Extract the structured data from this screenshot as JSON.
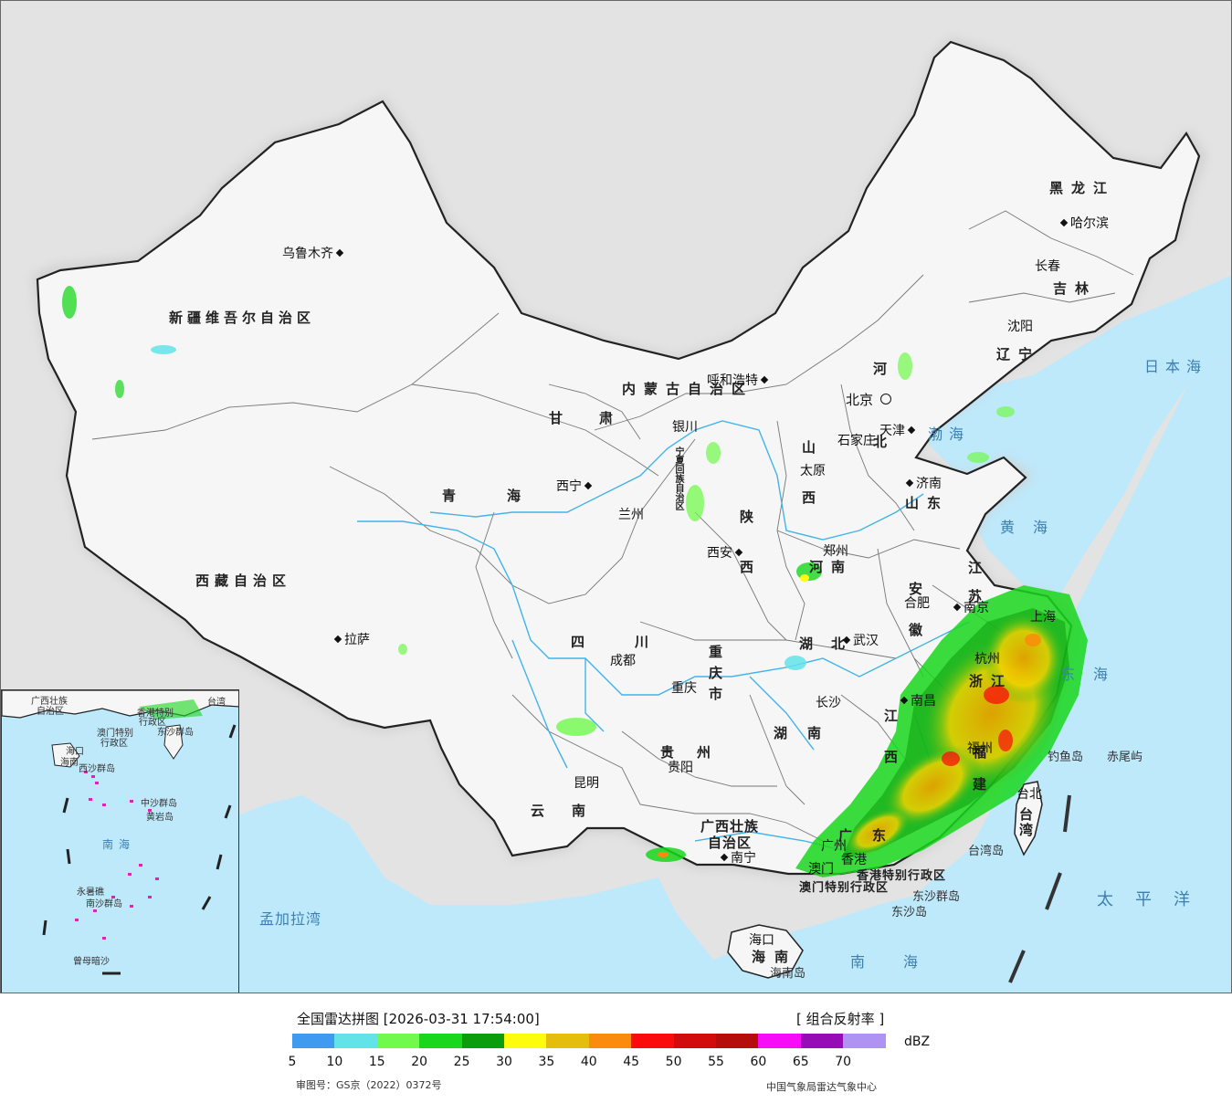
{
  "title": "全国雷达拼图 [2026-03-31 17:54:00]",
  "product": "[ 组合反射率 ]",
  "unit": "dBZ",
  "approval_number": "审图号：GS京（2022）0372号",
  "issuer": "中国气象局雷达气象中心",
  "legend": {
    "ticks": [
      "5",
      "10",
      "15",
      "20",
      "25",
      "30",
      "35",
      "40",
      "45",
      "50",
      "55",
      "60",
      "65",
      "70"
    ],
    "colors": [
      "#3e9bf0",
      "#62e3e8",
      "#71fa4c",
      "#19d71c",
      "#0c9d0c",
      "#fcfc0c",
      "#e3be0c",
      "#fa8b0c",
      "#fa0c0c",
      "#d20c0c",
      "#b50c0c",
      "#f60cf6",
      "#960cb7",
      "#ae93f2"
    ]
  },
  "capital": "北京",
  "cities": [
    {
      "name": "乌鲁木齐"
    },
    {
      "name": "呼和浩特"
    },
    {
      "name": "哈尔滨"
    },
    {
      "name": "长春"
    },
    {
      "name": "沈阳"
    },
    {
      "name": "天津"
    },
    {
      "name": "石家庄"
    },
    {
      "name": "太原"
    },
    {
      "name": "济南"
    },
    {
      "name": "银川"
    },
    {
      "name": "西宁"
    },
    {
      "name": "兰州"
    },
    {
      "name": "西安"
    },
    {
      "name": "郑州"
    },
    {
      "name": "合肥"
    },
    {
      "name": "南京"
    },
    {
      "name": "上海"
    },
    {
      "name": "杭州"
    },
    {
      "name": "武汉"
    },
    {
      "name": "成都"
    },
    {
      "name": "重庆"
    },
    {
      "name": "拉萨"
    },
    {
      "name": "长沙"
    },
    {
      "name": "南昌"
    },
    {
      "name": "福州"
    },
    {
      "name": "台北"
    },
    {
      "name": "贵阳"
    },
    {
      "name": "昆明"
    },
    {
      "name": "南宁"
    },
    {
      "name": "广州"
    },
    {
      "name": "澳门"
    },
    {
      "name": "香港"
    },
    {
      "name": "海口"
    }
  ],
  "provinces": [
    "黑龙江",
    "吉林",
    "辽宁",
    "内蒙古自治区",
    "新疆维吾尔自治区",
    "西藏自治区",
    "青海",
    "甘肃",
    "宁夏回族自治区",
    "陕西",
    "山西",
    "河北",
    "山东",
    "河南",
    "江苏",
    "安徽",
    "浙江",
    "湖北",
    "湖南",
    "江西",
    "福建",
    "四川",
    "重庆市",
    "贵州",
    "云南",
    "广西壮族自治区",
    "广东",
    "海南",
    "台湾"
  ],
  "special_regions": [
    "香港特别行政区",
    "澳门特别行政区"
  ],
  "seas": [
    "日本海",
    "渤海",
    "黄海",
    "东海",
    "太平洋",
    "南海",
    "孟加拉湾"
  ],
  "islands": [
    "钓鱼岛",
    "赤尾屿",
    "东沙群岛",
    "东沙岛",
    "台湾岛",
    "海南岛"
  ],
  "inset": {
    "labels": [
      "广西壮族",
      "自治区",
      "香港特别",
      "行政区",
      "澳门特别",
      "行政区",
      "东沙群岛",
      "海口",
      "海南",
      "西沙群岛",
      "中沙群岛",
      "黄岩岛",
      "南沙群岛",
      "曾母暗沙",
      "台湾",
      "永暑礁"
    ],
    "sea": "南海"
  },
  "colors": {
    "land": "#f6f6f6",
    "outside": "#e3e3e3",
    "sea": "#bde9fb",
    "border": "#222222",
    "river": "#42b4ea"
  }
}
